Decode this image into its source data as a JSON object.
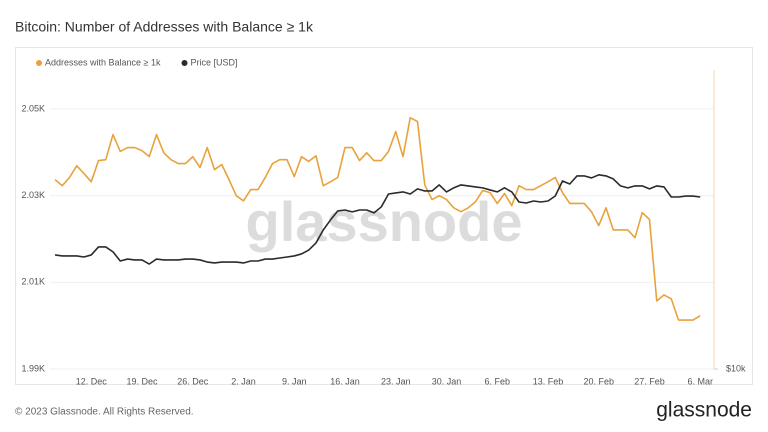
{
  "chart_data": {
    "type": "line",
    "title": "Bitcoin: Number of Addresses with Balance ≥ 1k",
    "watermark": "glassnode",
    "categories": [
      null,
      null,
      null,
      null,
      null,
      "12. Dec",
      null,
      null,
      null,
      null,
      null,
      null,
      "19. Dec",
      null,
      null,
      null,
      null,
      null,
      null,
      "26. Dec",
      null,
      null,
      null,
      null,
      null,
      null,
      "2. Jan",
      null,
      null,
      null,
      null,
      null,
      null,
      "9. Jan",
      null,
      null,
      null,
      null,
      null,
      null,
      "16. Jan",
      null,
      null,
      null,
      null,
      null,
      null,
      "23. Jan",
      null,
      null,
      null,
      null,
      null,
      null,
      "30. Jan",
      null,
      null,
      null,
      null,
      null,
      null,
      "6. Feb",
      null,
      null,
      null,
      null,
      null,
      null,
      "13. Feb",
      null,
      null,
      null,
      null,
      null,
      null,
      "20. Feb",
      null,
      null,
      null,
      null,
      null,
      null,
      "27. Feb",
      null,
      null,
      null,
      null,
      null,
      null,
      "6. Mar"
    ],
    "series": [
      {
        "name": "Addresses with Balance ≥ 1k",
        "color": "#e9a23b",
        "axis": "y",
        "values": [
          2033.7,
          2032.3,
          2034.2,
          2036.9,
          2035.1,
          2033.2,
          2038.1,
          2038.3,
          2044.1,
          2040.2,
          2041.1,
          2041.1,
          2040.4,
          2039.0,
          2044.1,
          2039.9,
          2038.3,
          2037.4,
          2037.4,
          2039.0,
          2036.5,
          2041.1,
          2036.0,
          2037.2,
          2033.7,
          2030.0,
          2028.8,
          2031.4,
          2031.4,
          2034.2,
          2037.4,
          2038.3,
          2038.3,
          2034.4,
          2039.0,
          2037.9,
          2039.2,
          2032.3,
          2033.2,
          2034.2,
          2041.1,
          2041.1,
          2038.1,
          2039.9,
          2038.1,
          2038.1,
          2040.2,
          2044.8,
          2039.0,
          2048.0,
          2047.1,
          2032.5,
          2029.1,
          2030.0,
          2029.1,
          2027.2,
          2026.3,
          2027.2,
          2028.6,
          2031.2,
          2030.7,
          2028.2,
          2030.5,
          2027.7,
          2032.3,
          2031.4,
          2031.4,
          2032.3,
          2033.2,
          2034.2,
          2030.7,
          2028.2,
          2028.2,
          2028.2,
          2026.3,
          2023.1,
          2027.2,
          2022.1,
          2022.1,
          2022.1,
          2020.3,
          2026.1,
          2024.5,
          2005.7,
          2007.1,
          2006.2,
          2001.3,
          2001.3,
          2001.3,
          2002.3
        ]
      },
      {
        "name": "Price [USD]",
        "color": "#2b2b2b",
        "axis": "y2",
        "values": [
          16970,
          16890,
          16890,
          16890,
          16810,
          16970,
          17610,
          17610,
          17210,
          16500,
          16650,
          16580,
          16580,
          16270,
          16650,
          16580,
          16580,
          16580,
          16650,
          16650,
          16580,
          16420,
          16350,
          16420,
          16420,
          16420,
          16350,
          16500,
          16500,
          16650,
          16650,
          16730,
          16810,
          16890,
          17050,
          17360,
          17940,
          19050,
          19960,
          20810,
          20900,
          20720,
          20900,
          20900,
          20620,
          21200,
          22510,
          22620,
          22730,
          22510,
          23050,
          22830,
          22830,
          23480,
          22730,
          23160,
          23480,
          23370,
          23260,
          23160,
          22940,
          22730,
          23160,
          22730,
          21690,
          21590,
          21790,
          21690,
          21790,
          22300,
          23910,
          23580,
          24480,
          24480,
          24250,
          24600,
          24480,
          24140,
          23370,
          23160,
          23370,
          23370,
          23050,
          23370,
          23260,
          22200,
          22200,
          22300,
          22300,
          22200
        ]
      }
    ],
    "ylim": [
      1990,
      2059
    ],
    "yticks": [
      {
        "value": 1990,
        "label": "1.99K"
      },
      {
        "value": 2010,
        "label": "2.01K"
      },
      {
        "value": 2030,
        "label": "2.03K"
      },
      {
        "value": 2050,
        "label": "2.05K"
      }
    ],
    "y2lim": [
      10000,
      40000
    ],
    "y2ticks": [
      {
        "value": 10000,
        "label": "$10k"
      }
    ],
    "y2_log_scale": true,
    "grid": true,
    "legend": "top-left"
  },
  "footer": {
    "copyright": "© 2023 Glassnode. All Rights Reserved.",
    "brand": "glassnode"
  }
}
